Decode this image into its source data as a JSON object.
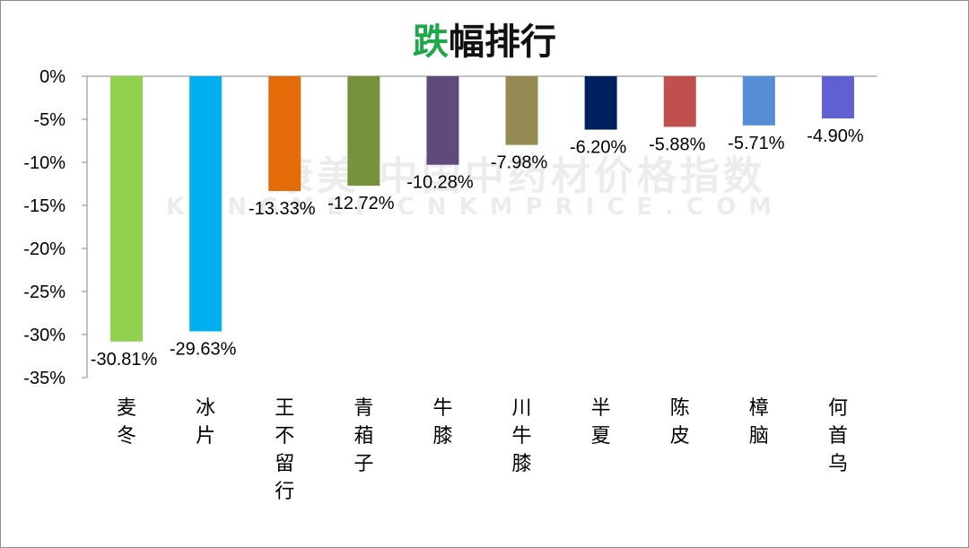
{
  "title_prefix": "跌",
  "title_rest": "幅排行",
  "watermark": {
    "cn": "康美·中国中药材价格指数",
    "en": "KANGMEI CNKMPRICE.COM"
  },
  "chart_data": {
    "type": "bar",
    "title": "跌幅排行",
    "categories": [
      "麦冬",
      "冰片",
      "王不留行",
      "青葙子",
      "牛膝",
      "川牛膝",
      "半夏",
      "陈皮",
      "樟脑",
      "何首乌"
    ],
    "values": [
      -30.81,
      -29.63,
      -13.33,
      -12.72,
      -10.28,
      -7.98,
      -6.2,
      -5.88,
      -5.71,
      -4.9
    ],
    "data_labels": [
      "-30.81%",
      "-29.63%",
      "-13.33%",
      "-12.72%",
      "-10.28%",
      "-7.98%",
      "-6.20%",
      "-5.88%",
      "-5.71%",
      "-4.90%"
    ],
    "colors": [
      "#92d050",
      "#00b0f0",
      "#e36c09",
      "#76933c",
      "#604a7b",
      "#948a54",
      "#002060",
      "#c0504d",
      "#558ed5",
      "#6060d0"
    ],
    "ylim": [
      -35,
      0
    ],
    "yticks": [
      "0%",
      "-5%",
      "-10%",
      "-15%",
      "-20%",
      "-25%",
      "-30%",
      "-35%"
    ],
    "ytick_values": [
      0,
      -5,
      -10,
      -15,
      -20,
      -25,
      -30,
      -35
    ],
    "grid": false,
    "legend": "none"
  }
}
